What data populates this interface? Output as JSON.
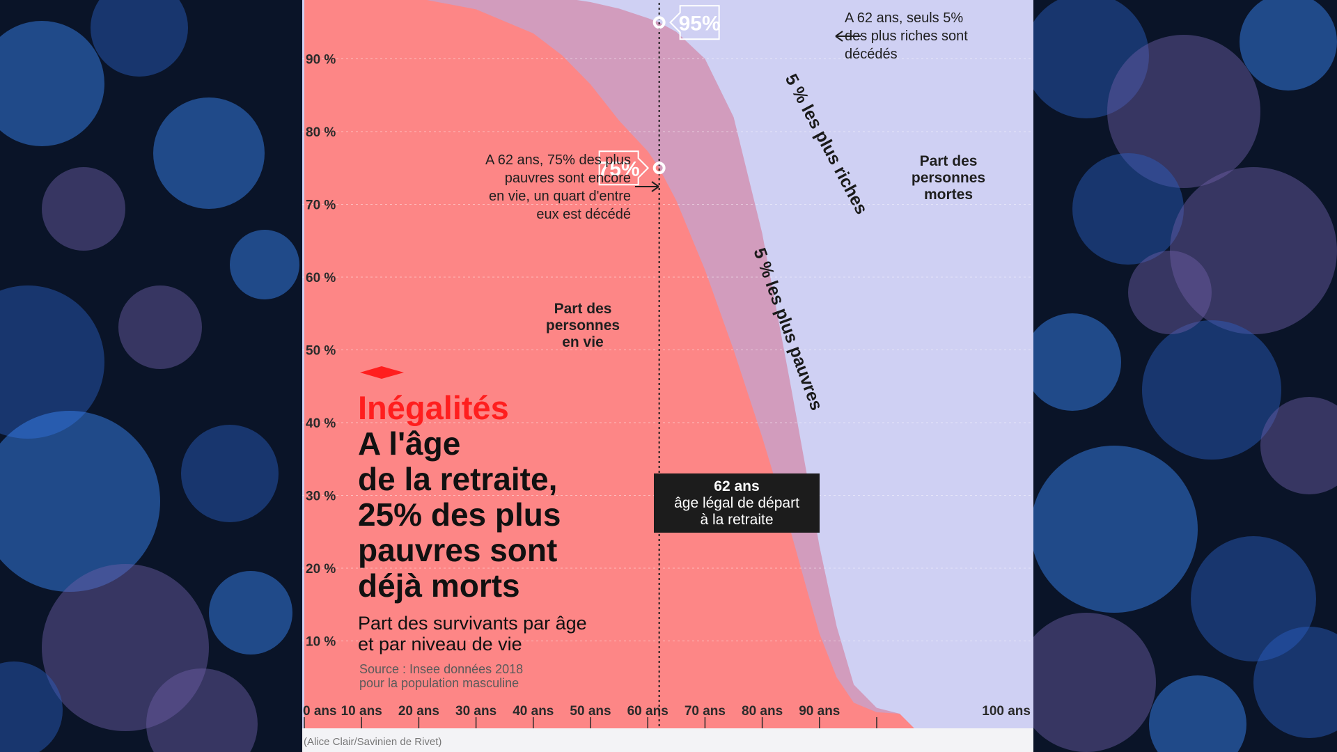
{
  "colors": {
    "poor_fill": "#fd8686",
    "rich_fill": "#d29cbd",
    "dead_fill": "#cfd0f3",
    "accent_red": "#ff1e1e",
    "dark_box": "#1c1c1c",
    "background": "#0a1428"
  },
  "chart_data": {
    "type": "area",
    "x_unit": "ans",
    "y_unit": "%",
    "xlim": [
      0,
      104
    ],
    "ylim": [
      0,
      100
    ],
    "grid": true,
    "x_ticks": [
      {
        "value": 0,
        "label": "0 ans"
      },
      {
        "value": 10,
        "label": "10 ans"
      },
      {
        "value": 20,
        "label": "20 ans"
      },
      {
        "value": 30,
        "label": "30 ans"
      },
      {
        "value": 40,
        "label": "40 ans"
      },
      {
        "value": 50,
        "label": "50 ans"
      },
      {
        "value": 60,
        "label": "60 ans"
      },
      {
        "value": 70,
        "label": "70 ans"
      },
      {
        "value": 80,
        "label": "80 ans"
      },
      {
        "value": 90,
        "label": "90 ans"
      },
      {
        "value": 100,
        "label": "100 ans"
      }
    ],
    "y_ticks": [
      {
        "value": 10,
        "label": "10 %"
      },
      {
        "value": 20,
        "label": "20 %"
      },
      {
        "value": 30,
        "label": "30 %"
      },
      {
        "value": 40,
        "label": "40 %"
      },
      {
        "value": 50,
        "label": "50 %"
      },
      {
        "value": 60,
        "label": "60 %"
      },
      {
        "value": 70,
        "label": "70 %"
      },
      {
        "value": 80,
        "label": "80 %"
      },
      {
        "value": 90,
        "label": "90 %"
      }
    ],
    "x": [
      0,
      10,
      20,
      30,
      40,
      45,
      50,
      55,
      60,
      62,
      65,
      70,
      75,
      80,
      85,
      88,
      90,
      93,
      96,
      100,
      104
    ],
    "series": [
      {
        "name": "5 % les plus riches",
        "values": [
          100,
          99.8,
          99.6,
          99.3,
          98.8,
          98.4,
          97.8,
          96.9,
          95.6,
          95,
          93.7,
          90,
          82,
          66,
          45,
          32,
          23,
          12,
          4,
          0.8,
          0
        ]
      },
      {
        "name": "5 % les plus pauvres",
        "values": [
          99.5,
          99.2,
          98.3,
          96.8,
          93.5,
          90.5,
          86.5,
          81.5,
          77.3,
          75,
          70.5,
          61,
          50,
          38,
          25,
          16.5,
          11,
          5,
          1.5,
          0.2,
          0
        ]
      }
    ],
    "reference_line": {
      "x": 62
    }
  },
  "labels": {
    "dead_area": [
      "Part des",
      "personnes",
      "mortes"
    ],
    "alive_area": [
      "Part des",
      "personnes",
      "en vie"
    ],
    "rich_curve": "5 % les plus riches",
    "poor_curve": "5 % les plus pauvres",
    "rich_point": "95%",
    "poor_point": "75%",
    "rich_note": [
      "A 62 ans, seuls 5%",
      "des plus riches sont",
      "décédés"
    ],
    "poor_note": [
      "A 62 ans, 75% des plus",
      "pauvres sont encore",
      "en vie, un quart d'entre",
      "eux est décédé"
    ],
    "retirement_box": [
      "62 ans",
      "âge légal de départ",
      "à la retraite"
    ]
  },
  "headline": {
    "kicker": "Inégalités",
    "title_lines": [
      "A l'âge",
      "de la retraite,",
      "25% des plus",
      "pauvres sont",
      "déjà morts"
    ],
    "subtitle_lines": [
      "Part des survivants par âge",
      "et par niveau de vie"
    ],
    "source_lines": [
      "Source : Insee données 2018",
      "pour la population masculine"
    ]
  },
  "credit": "(Alice Clair/Savinien de Rivet)"
}
